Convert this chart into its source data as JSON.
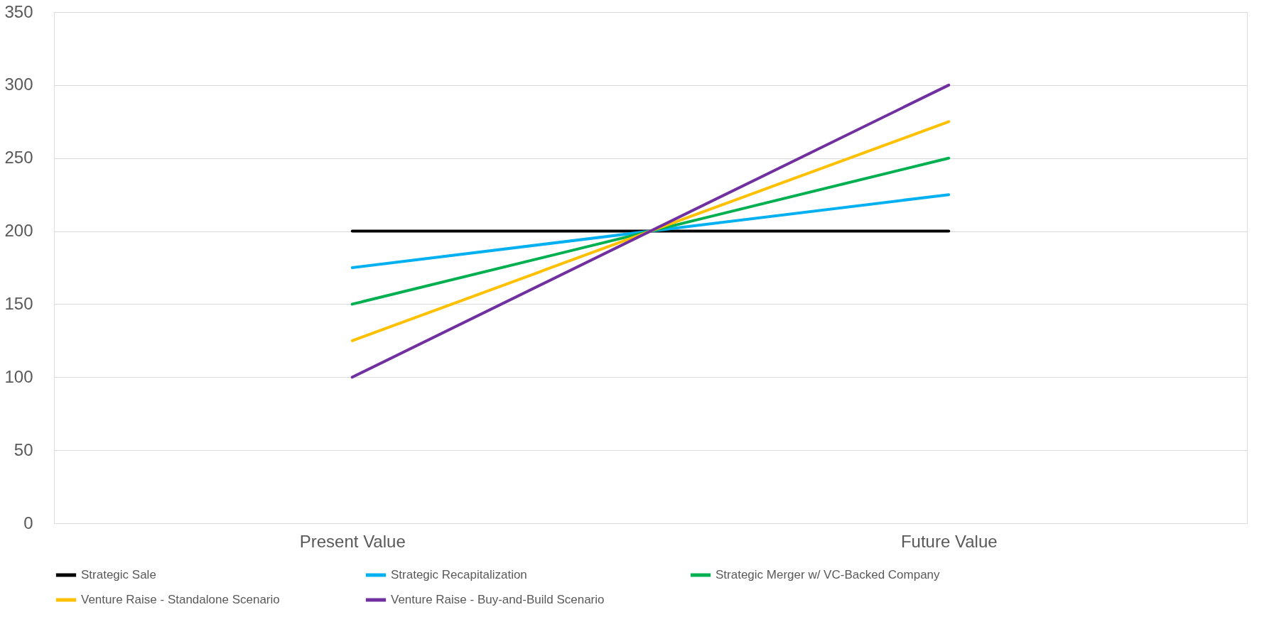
{
  "chart_data": {
    "type": "line",
    "categories": [
      "Present Value",
      "Future Value"
    ],
    "series": [
      {
        "name": "Strategic Sale",
        "color": "#000000",
        "values": [
          200,
          200
        ]
      },
      {
        "name": "Strategic Recapitalization",
        "color": "#00b0f0",
        "values": [
          175,
          225
        ]
      },
      {
        "name": "Strategic Merger w/ VC-Backed Company",
        "color": "#00b050",
        "values": [
          150,
          250
        ]
      },
      {
        "name": "Venture Raise - Standalone Scenario",
        "color": "#ffc000",
        "values": [
          125,
          275
        ]
      },
      {
        "name": "Venture Raise - Buy-and-Build Scenario",
        "color": "#7030a0",
        "values": [
          100,
          300
        ]
      }
    ],
    "ylim": [
      0,
      350
    ],
    "yticks": [
      0,
      50,
      100,
      150,
      200,
      250,
      300,
      350
    ],
    "grid": "y",
    "legend": "bottom"
  }
}
